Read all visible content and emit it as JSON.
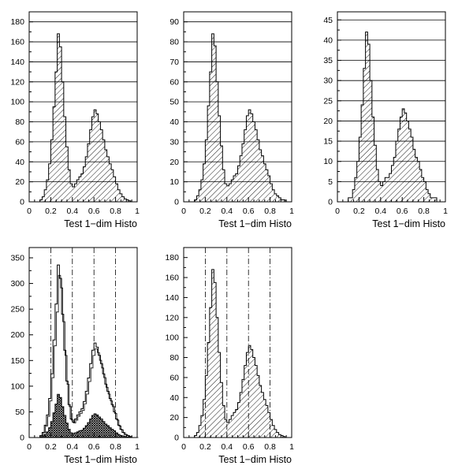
{
  "chart_data": [
    {
      "type": "bar",
      "panel": "top-left",
      "xlabel": "Test 1−dim Histo",
      "xlim": [
        0,
        1
      ],
      "ylim": [
        0,
        190
      ],
      "x_ticks": [
        "0",
        "0.2",
        "0.4",
        "0.6",
        "0.8",
        "1"
      ],
      "y_ticks": [
        "0",
        "20",
        "40",
        "60",
        "80",
        "100",
        "120",
        "140",
        "160",
        "180"
      ],
      "grid": "horizontal",
      "fill": "hatched",
      "series": [
        {
          "bins": 50,
          "values": [
            0,
            0,
            0,
            0,
            0,
            2,
            5,
            12,
            22,
            38,
            62,
            95,
            130,
            168,
            155,
            120,
            85,
            55,
            32,
            18,
            15,
            18,
            22,
            25,
            28,
            35,
            45,
            58,
            72,
            85,
            92,
            88,
            80,
            72,
            62,
            52,
            45,
            38,
            32,
            25,
            18,
            12,
            8,
            5,
            3,
            2,
            1,
            0,
            0,
            0
          ]
        }
      ]
    },
    {
      "type": "bar",
      "panel": "top-middle",
      "xlabel": "Test 1−dim Histo",
      "xlim": [
        0,
        1
      ],
      "ylim": [
        0,
        95
      ],
      "x_ticks": [
        "0",
        "0.2",
        "0.4",
        "0.6",
        "0.8",
        "1"
      ],
      "y_ticks": [
        "0",
        "10",
        "20",
        "30",
        "40",
        "50",
        "60",
        "70",
        "80",
        "90"
      ],
      "grid": "horizontal",
      "fill": "hatched",
      "series": [
        {
          "bins": 50,
          "values": [
            0,
            0,
            0,
            0,
            0,
            1,
            3,
            6,
            11,
            19,
            31,
            48,
            65,
            84,
            78,
            60,
            43,
            28,
            16,
            9,
            8,
            9,
            11,
            13,
            14,
            18,
            23,
            29,
            36,
            43,
            46,
            44,
            40,
            36,
            31,
            26,
            23,
            19,
            16,
            13,
            9,
            6,
            4,
            3,
            2,
            1,
            1,
            0,
            0,
            0
          ]
        }
      ]
    },
    {
      "type": "bar",
      "panel": "top-right",
      "xlabel": "Test 1−dim Histo",
      "xlim": [
        0,
        1
      ],
      "ylim": [
        0,
        47
      ],
      "x_ticks": [
        "0",
        "0.2",
        "0.4",
        "0.6",
        "0.8",
        "1"
      ],
      "y_ticks": [
        "0",
        "5",
        "10",
        "15",
        "20",
        "25",
        "30",
        "35",
        "40",
        "45"
      ],
      "grid": "horizontal",
      "fill": "hatched",
      "series": [
        {
          "bins": 50,
          "values": [
            0,
            0,
            0,
            0,
            0,
            1,
            1,
            3,
            6,
            10,
            16,
            24,
            33,
            42,
            39,
            30,
            21,
            14,
            8,
            5,
            4,
            5,
            6,
            6,
            7,
            9,
            11,
            15,
            18,
            21,
            23,
            22,
            20,
            18,
            16,
            13,
            11,
            10,
            8,
            6,
            5,
            3,
            2,
            1,
            1,
            1,
            0,
            0,
            0,
            0
          ]
        }
      ]
    },
    {
      "type": "bar",
      "panel": "bottom-left",
      "xlabel": "Test 1−dim Histo",
      "xlim": [
        0,
        1
      ],
      "ylim": [
        0,
        370
      ],
      "x_ticks": [
        "0",
        "0.2",
        "0.4",
        "0.6",
        "0.8",
        "1"
      ],
      "y_ticks": [
        "0",
        "50",
        "100",
        "150",
        "200",
        "250",
        "300",
        "350"
      ],
      "grid": "vertical-dashed",
      "fill": "stacked",
      "series": [
        {
          "role": "total",
          "bins": 50,
          "values": [
            0,
            0,
            0,
            0,
            0,
            4,
            10,
            24,
            44,
            76,
            124,
            190,
            260,
            336,
            310,
            240,
            170,
            110,
            64,
            36,
            30,
            36,
            44,
            50,
            56,
            70,
            90,
            116,
            144,
            170,
            184,
            176,
            160,
            144,
            124,
            104,
            90,
            76,
            64,
            50,
            36,
            24,
            16,
            10,
            6,
            4,
            2,
            0,
            0,
            0
          ]
        },
        {
          "role": "component",
          "bins": 50,
          "values": [
            0,
            0,
            0,
            0,
            0,
            1,
            2,
            6,
            11,
            19,
            31,
            48,
            65,
            84,
            78,
            60,
            43,
            28,
            16,
            9,
            8,
            9,
            11,
            13,
            14,
            18,
            23,
            29,
            36,
            43,
            46,
            44,
            40,
            36,
            31,
            26,
            23,
            19,
            16,
            13,
            9,
            6,
            4,
            3,
            2,
            1,
            1,
            0,
            0,
            0
          ]
        }
      ]
    },
    {
      "type": "bar",
      "panel": "bottom-middle",
      "xlabel": "Test 1−dim Histo",
      "xlim": [
        0,
        1
      ],
      "ylim": [
        0,
        190
      ],
      "x_ticks": [
        "0",
        "0.2",
        "0.4",
        "0.6",
        "0.8",
        "1"
      ],
      "y_ticks": [
        "0",
        "20",
        "40",
        "60",
        "80",
        "100",
        "120",
        "140",
        "160",
        "180"
      ],
      "grid": "vertical-dashed",
      "fill": "hatched",
      "series": [
        {
          "bins": 50,
          "values": [
            0,
            0,
            0,
            0,
            0,
            2,
            5,
            12,
            22,
            38,
            62,
            95,
            130,
            168,
            155,
            120,
            85,
            55,
            32,
            18,
            15,
            18,
            22,
            25,
            28,
            35,
            45,
            58,
            72,
            85,
            92,
            88,
            80,
            72,
            62,
            52,
            45,
            38,
            32,
            25,
            18,
            12,
            8,
            5,
            3,
            2,
            1,
            0,
            0,
            0
          ]
        }
      ]
    }
  ]
}
